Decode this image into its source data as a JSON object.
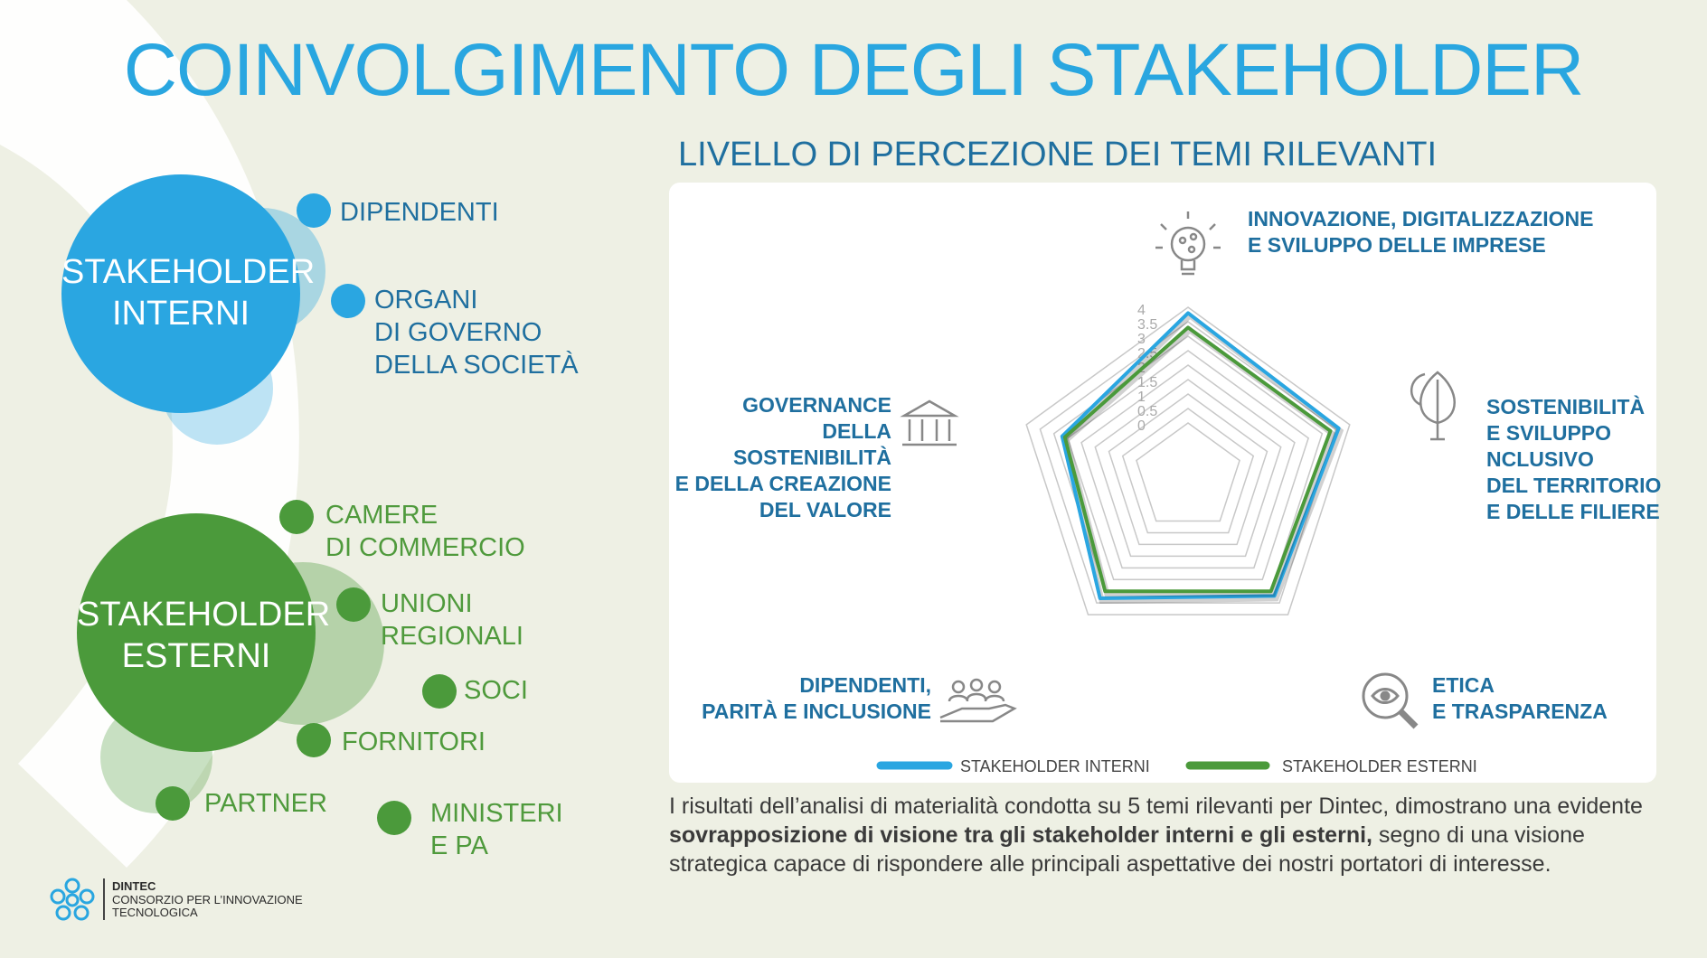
{
  "header": {
    "title": "COINVOLGIMENTO DEGLI STAKEHOLDER"
  },
  "left": {
    "internal": {
      "label": "STAKEHOLDER\nINTERNI",
      "items": [
        "DIPENDENTI",
        "ORGANI\nDI GOVERNO\nDELLA SOCIETÀ"
      ]
    },
    "external": {
      "label": "STAKEHOLDER\nESTERNI",
      "items": [
        "CAMERE\nDI COMMERCIO",
        "UNIONI\nREGIONALI",
        "SOCI",
        "FORNITORI",
        "PARTNER",
        "MINISTERI\nE PA"
      ]
    }
  },
  "colors": {
    "internal": "#2aa6e1",
    "external": "#4b9a3b",
    "title": "#29a6e0",
    "text_blue": "#1f6f9f"
  },
  "chart_data": {
    "type": "radar",
    "title": "LIVELLO DI PERCEZIONE DEI TEMI RILEVANTI",
    "axes": [
      "INNOVAZIONE, DIGITALIZZAZIONE\nE SVILUPPO DELLE IMPRESE",
      "SOSTENIBILITÀ\nE SVILUPPO\nNCLUSIVO\nDEL TERRITORIO\nE DELLE FILIERE",
      "ETICA\nE TRASPARENZA",
      "DIPENDENTI,\nPARITÀ E INCLUSIONE",
      "GOVERNANCE\nDELLA SOSTENIBILITÀ\nE DELLA CREAZIONE\nDEL VALORE"
    ],
    "icons": [
      "lightbulb-icon",
      "leaf-plug-icon",
      "magnifier-eye-icon",
      "people-hand-icon",
      "institution-icon"
    ],
    "ticks": [
      "0",
      "0.5",
      "1",
      "1.5",
      "2",
      "2.5",
      "3",
      "3.5",
      "4"
    ],
    "ylim": [
      0,
      4
    ],
    "series": [
      {
        "name": "STAKEHOLDER INTERNI",
        "color": "#2aa6e1",
        "values": [
          3.8,
          3.6,
          3.2,
          3.3,
          2.7
        ]
      },
      {
        "name": "STAKEHOLDER ESTERNI",
        "color": "#4b9a3b",
        "values": [
          3.3,
          3.3,
          3.0,
          3.0,
          2.6
        ]
      }
    ],
    "legend": "bottom"
  },
  "description": {
    "part1": "I risultati dell’analisi di materialità condotta su 5 temi rilevanti per Dintec, dimostrano una evidente ",
    "bold": "sovrapposizione di visione tra gli stakeholder interni e gli esterni,",
    "part2": " segno di una visione strategica capace di rispondere alle principali aspettative dei nostri portatori di interesse."
  },
  "logo": {
    "name": "DINTEC",
    "line1": "CONSORZIO PER L’INNOVAZIONE",
    "line2": "TECNOLOGICA"
  }
}
